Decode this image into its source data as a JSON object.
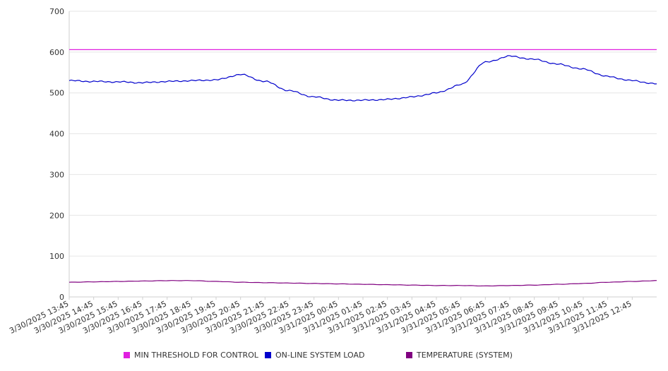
{
  "chart_data": {
    "type": "line",
    "title": "",
    "xlabel": "",
    "ylabel": "",
    "ylim": [
      0,
      700
    ],
    "y_ticks": [
      "0",
      "100",
      "200",
      "300",
      "400",
      "500",
      "600",
      "700"
    ],
    "grid": "horizontal",
    "legend_position": "bottom",
    "x_tick_labels": [
      "3/30/2025 13:45",
      "3/30/2025 14:45",
      "3/30/2025 15:45",
      "3/30/2025 16:45",
      "3/30/2025 17:45",
      "3/30/2025 18:45",
      "3/30/2025 19:45",
      "3/30/2025 20:45",
      "3/30/2025 21:45",
      "3/30/2025 22:45",
      "3/30/2025 23:45",
      "3/31/2025 00:45",
      "3/31/2025 01:45",
      "3/31/2025 02:45",
      "3/31/2025 03:45",
      "3/31/2025 04:45",
      "3/31/2025 05:45",
      "3/31/2025 06:45",
      "3/31/2025 07:45",
      "3/31/2025 08:45",
      "3/31/2025 09:45",
      "3/31/2025 10:45",
      "3/31/2025 11:45",
      "3/31/2025 12:45"
    ],
    "x": [
      "3/30/2025 13:45",
      "3/30/2025 14:45",
      "3/30/2025 15:45",
      "3/30/2025 16:45",
      "3/30/2025 17:45",
      "3/30/2025 18:45",
      "3/30/2025 19:45",
      "3/30/2025 20:45",
      "3/30/2025 21:45",
      "3/30/2025 22:45",
      "3/30/2025 23:45",
      "3/31/2025 00:45",
      "3/31/2025 01:45",
      "3/31/2025 02:45",
      "3/31/2025 03:45",
      "3/31/2025 04:45",
      "3/31/2025 05:45",
      "3/31/2025 06:45",
      "3/31/2025 07:45",
      "3/31/2025 08:45",
      "3/31/2025 09:45",
      "3/31/2025 10:45",
      "3/31/2025 11:45",
      "3/31/2025 12:45",
      "3/31/2025 13:45"
    ],
    "series": [
      {
        "name": "MIN THRESHOLD FOR CONTROL",
        "color": "#e020e0",
        "values": [
          606,
          606,
          606,
          606,
          606,
          606,
          606,
          606,
          606,
          606,
          606,
          606,
          606,
          606,
          606,
          606,
          606,
          606,
          606,
          606,
          606,
          606,
          606,
          606,
          606
        ]
      },
      {
        "name": "ON-LINE SYSTEM LOAD",
        "color": "#0000cc",
        "values": [
          530,
          528,
          527,
          525,
          528,
          530,
          532,
          545,
          528,
          505,
          490,
          482,
          482,
          484,
          490,
          500,
          520,
          575,
          590,
          582,
          570,
          558,
          540,
          530,
          522
        ]
      },
      {
        "name": "TEMPERATURE (SYSTEM)",
        "color": "#800080",
        "values": [
          36,
          37,
          38,
          39,
          40,
          40,
          38,
          36,
          35,
          34,
          33,
          32,
          31,
          30,
          29,
          28,
          28,
          27,
          28,
          29,
          31,
          33,
          36,
          38,
          40
        ]
      }
    ]
  }
}
